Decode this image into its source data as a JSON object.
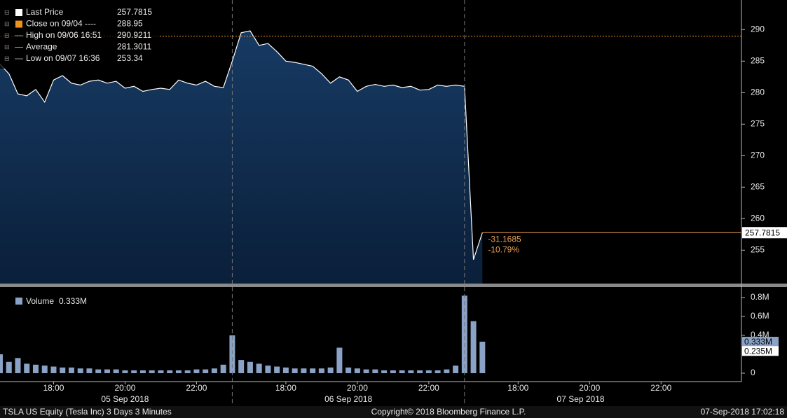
{
  "chart_data": [
    {
      "type": "area",
      "series": [
        {
          "name": "Last Price",
          "color": "#ffffff",
          "values": [
            284.5,
            283,
            279.8,
            279.5,
            280.5,
            278.5,
            282,
            282.7,
            281.5,
            281.2,
            281.8,
            282,
            281.5,
            281.8,
            280.7,
            281,
            280.2,
            280.5,
            280.7,
            280.5,
            282,
            281.5,
            281.2,
            281.8,
            281,
            280.8,
            285,
            289.5,
            289.8,
            287.5,
            287.8,
            286.5,
            285,
            284.8,
            284.5,
            284.2,
            283,
            281.5,
            282.5,
            282,
            280.2,
            281,
            281.3,
            281,
            281.2,
            280.8,
            281,
            280.4,
            280.5,
            281.2,
            281,
            281.2,
            281,
            253.5,
            257.7815
          ]
        }
      ],
      "legend": [
        {
          "label": "Last Price",
          "value": 257.7815,
          "color": "#ffffff"
        },
        {
          "label": "Close on 09/04 ----",
          "value": 288.95,
          "color": "#f0901e"
        },
        {
          "label": "High on 09/06 16:51",
          "value": 290.9211
        },
        {
          "label": "Average",
          "value": 281.3011
        },
        {
          "label": "Low on 09/07 16:36",
          "value": 253.34
        }
      ],
      "change": {
        "value": -31.1685,
        "percent": {
          "value": -10.79,
          "label": "-10.79%"
        }
      },
      "xlim": [
        0,
        83
      ],
      "ylim": [
        249.7,
        294.7
      ],
      "yticks": [
        255,
        260,
        265,
        270,
        275,
        280,
        285,
        290
      ]
    },
    {
      "type": "bar",
      "series": [
        {
          "name": "Volume",
          "color": "#8aa2c6",
          "value_label": "0.333M",
          "values": [
            0.2,
            0.12,
            0.16,
            0.1,
            0.09,
            0.08,
            0.07,
            0.06,
            0.06,
            0.05,
            0.05,
            0.04,
            0.04,
            0.04,
            0.03,
            0.03,
            0.03,
            0.03,
            0.03,
            0.03,
            0.03,
            0.03,
            0.04,
            0.04,
            0.05,
            0.09,
            0.4,
            0.14,
            0.12,
            0.1,
            0.08,
            0.07,
            0.06,
            0.05,
            0.05,
            0.05,
            0.05,
            0.06,
            0.27,
            0.06,
            0.05,
            0.04,
            0.04,
            0.03,
            0.03,
            0.03,
            0.03,
            0.03,
            0.03,
            0.03,
            0.04,
            0.08,
            0.82,
            0.55,
            0.333
          ]
        }
      ],
      "flags": [
        {
          "value": 0.333,
          "label": "0.333M",
          "color": "#8aa2c6"
        },
        {
          "value": 0.235,
          "label": "0.235M",
          "color": "#ffffff"
        }
      ],
      "xlim": [
        0,
        83
      ],
      "ylim": [
        -0.089,
        0.911
      ],
      "yticks": [
        {
          "value": 0.8,
          "label": "0.8M"
        },
        {
          "value": 0.6,
          "label": "0.6M"
        },
        {
          "value": 0.4,
          "label": "0.4M"
        },
        0
      ],
      "day_breaks": [
        26,
        52
      ],
      "xticks": [
        {
          "value": 6,
          "label": "18:00"
        },
        {
          "value": 14,
          "label": "20:00"
        },
        {
          "value": 22,
          "label": "22:00"
        },
        {
          "value": 32,
          "label": "18:00"
        },
        {
          "value": 40,
          "label": "20:00"
        },
        {
          "value": 48,
          "label": "22:00"
        },
        {
          "value": 58,
          "label": "18:00"
        },
        {
          "value": 66,
          "label": "20:00"
        },
        {
          "value": 74,
          "label": "22:00"
        }
      ],
      "day_labels": [
        {
          "value": 14,
          "label": "05 Sep 2018"
        },
        {
          "value": 39,
          "label": "06 Sep 2018"
        },
        {
          "value": 65,
          "label": "07 Sep 2018"
        }
      ]
    }
  ],
  "footer": {
    "left": "TSLA US Equity (Tesla Inc) 3 Days 3 Minutes",
    "center": "Copyright© 2018 Bloomberg Finance L.P.",
    "right": "07-Sep-2018 17:02:18"
  }
}
